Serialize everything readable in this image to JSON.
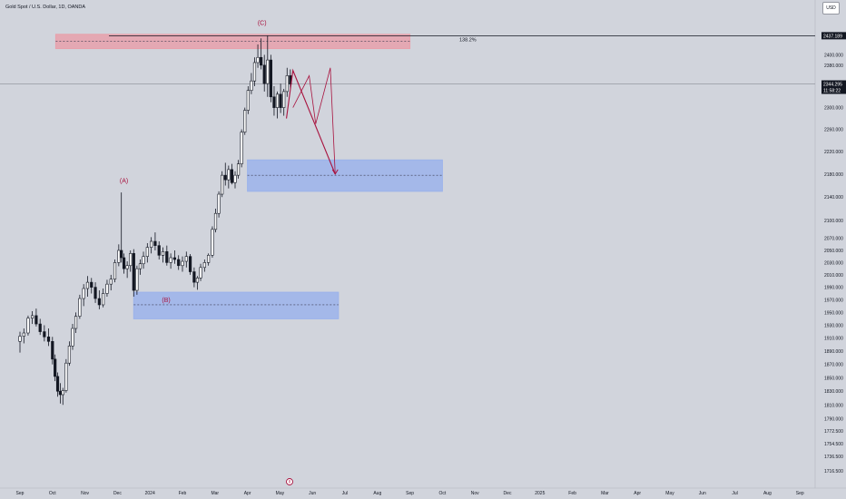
{
  "header": {
    "symbol_title": "Gold Spot / U.S. Dollar, 1D, OANDA",
    "currency_button": "USD"
  },
  "colors": {
    "background": "#d1d4dc",
    "candle": "#131722",
    "supply_zone": "#e8a0ab",
    "demand_zone": "#9cb3eb",
    "wave_label": "#a8123e",
    "projection": "#a8123e"
  },
  "chart_data": {
    "type": "candlestick",
    "y_scale": "log",
    "ylim": [
      1705,
      2445
    ],
    "x_tick_labels": [
      "Sep",
      "Oct",
      "Nov",
      "Dec",
      "2024",
      "Feb",
      "Mar",
      "Apr",
      "May",
      "Jun",
      "Jul",
      "Aug",
      "Sep",
      "Oct",
      "Nov",
      "Dec",
      "2025",
      "Feb",
      "Mar",
      "Apr",
      "May",
      "Jun",
      "Jul",
      "Aug",
      "Sep"
    ],
    "y_ticks": [
      2400,
      2380,
      2340,
      2300,
      2260,
      2220,
      2180,
      2140,
      2100,
      2070,
      2050,
      2030,
      2010,
      1990,
      1970,
      1950,
      1930,
      1910,
      1890,
      1870,
      1850,
      1830,
      1810,
      1790,
      1772.5,
      1754.5,
      1736.5,
      1716.5
    ],
    "y_tick_labels": [
      "2400.000",
      "2380.000",
      "2340.000",
      "2300.000",
      "2260.000",
      "2220.000",
      "2180.000",
      "2140.000",
      "2100.000",
      "2070.000",
      "2050.000",
      "2030.000",
      "2010.000",
      "1990.000",
      "1970.000",
      "1950.000",
      "1930.000",
      "1910.000",
      "1890.000",
      "1870.000",
      "1850.000",
      "1830.000",
      "1810.000",
      "1790.000",
      "1772.500",
      "1754.500",
      "1736.500",
      "1716.500"
    ],
    "price_levels": [
      {
        "value": 2437.189,
        "label": "2437.189",
        "fib_label": "138.2%"
      },
      {
        "value": 2344.295,
        "label": "2344.295",
        "countdown": "11:58:22"
      }
    ],
    "wave_labels": [
      {
        "text": "(A)",
        "month": 3.2,
        "value": 2165
      },
      {
        "text": "(B)",
        "month": 4.5,
        "value": 1966
      },
      {
        "text": "(C)",
        "month": 7.45,
        "value": 2458
      }
    ],
    "zones": [
      {
        "kind": "supply",
        "start_month": 1.1,
        "end_month": 12.0,
        "low": 2412,
        "high": 2440,
        "mid": 2426
      },
      {
        "kind": "demand",
        "start_month": 7.0,
        "end_month": 13.0,
        "low": 2150,
        "high": 2205,
        "mid": 2178
      },
      {
        "kind": "demand",
        "start_month": 3.5,
        "end_month": 9.8,
        "low": 1940,
        "high": 1982,
        "mid": 1962
      }
    ],
    "projection_paths": [
      [
        {
          "month": 8.2,
          "value": 2280
        },
        {
          "month": 8.4,
          "value": 2370
        },
        {
          "month": 9.7,
          "value": 2180
        }
      ],
      [
        {
          "month": 8.4,
          "value": 2300
        },
        {
          "month": 8.9,
          "value": 2360
        },
        {
          "month": 9.1,
          "value": 2270
        },
        {
          "month": 9.55,
          "value": 2375
        },
        {
          "month": 9.7,
          "value": 2180
        }
      ]
    ],
    "ohlc": [
      {
        "month": 0.0,
        "o": 1905,
        "h": 1920,
        "l": 1888,
        "c": 1913
      },
      {
        "month": 0.12,
        "o": 1913,
        "h": 1925,
        "l": 1902,
        "c": 1918
      },
      {
        "month": 0.25,
        "o": 1918,
        "h": 1945,
        "l": 1914,
        "c": 1941
      },
      {
        "month": 0.38,
        "o": 1941,
        "h": 1952,
        "l": 1932,
        "c": 1945
      },
      {
        "month": 0.5,
        "o": 1945,
        "h": 1956,
        "l": 1928,
        "c": 1932
      },
      {
        "month": 0.62,
        "o": 1932,
        "h": 1940,
        "l": 1915,
        "c": 1920
      },
      {
        "month": 0.75,
        "o": 1920,
        "h": 1930,
        "l": 1905,
        "c": 1912
      },
      {
        "month": 0.88,
        "o": 1912,
        "h": 1925,
        "l": 1898,
        "c": 1905
      },
      {
        "month": 1.0,
        "o": 1905,
        "h": 1912,
        "l": 1870,
        "c": 1878
      },
      {
        "month": 1.08,
        "o": 1878,
        "h": 1885,
        "l": 1845,
        "c": 1852
      },
      {
        "month": 1.16,
        "o": 1852,
        "h": 1858,
        "l": 1822,
        "c": 1830
      },
      {
        "month": 1.24,
        "o": 1830,
        "h": 1842,
        "l": 1812,
        "c": 1825
      },
      {
        "month": 1.32,
        "o": 1825,
        "h": 1835,
        "l": 1810,
        "c": 1831
      },
      {
        "month": 1.42,
        "o": 1831,
        "h": 1878,
        "l": 1828,
        "c": 1872
      },
      {
        "month": 1.52,
        "o": 1872,
        "h": 1905,
        "l": 1868,
        "c": 1898
      },
      {
        "month": 1.62,
        "o": 1898,
        "h": 1932,
        "l": 1892,
        "c": 1925
      },
      {
        "month": 1.72,
        "o": 1925,
        "h": 1950,
        "l": 1918,
        "c": 1944
      },
      {
        "month": 1.84,
        "o": 1944,
        "h": 1978,
        "l": 1940,
        "c": 1972
      },
      {
        "month": 1.96,
        "o": 1972,
        "h": 1995,
        "l": 1960,
        "c": 1988
      },
      {
        "month": 2.08,
        "o": 1988,
        "h": 2008,
        "l": 1975,
        "c": 1998
      },
      {
        "month": 2.2,
        "o": 1998,
        "h": 2005,
        "l": 1980,
        "c": 1990
      },
      {
        "month": 2.32,
        "o": 1990,
        "h": 1998,
        "l": 1965,
        "c": 1972
      },
      {
        "month": 2.44,
        "o": 1972,
        "h": 1985,
        "l": 1955,
        "c": 1962
      },
      {
        "month": 2.56,
        "o": 1962,
        "h": 1988,
        "l": 1958,
        "c": 1980
      },
      {
        "month": 2.68,
        "o": 1980,
        "h": 2002,
        "l": 1975,
        "c": 1995
      },
      {
        "month": 2.8,
        "o": 1995,
        "h": 2010,
        "l": 1985,
        "c": 2003
      },
      {
        "month": 2.92,
        "o": 2003,
        "h": 2035,
        "l": 1998,
        "c": 2030
      },
      {
        "month": 3.04,
        "o": 2030,
        "h": 2060,
        "l": 2024,
        "c": 2050
      },
      {
        "month": 3.12,
        "o": 2050,
        "h": 2148,
        "l": 2030,
        "c": 2038
      },
      {
        "month": 3.2,
        "o": 2038,
        "h": 2045,
        "l": 2012,
        "c": 2020
      },
      {
        "month": 3.3,
        "o": 2020,
        "h": 2032,
        "l": 2005,
        "c": 2025
      },
      {
        "month": 3.4,
        "o": 2025,
        "h": 2050,
        "l": 2015,
        "c": 2045
      },
      {
        "month": 3.5,
        "o": 2045,
        "h": 2052,
        "l": 1975,
        "c": 1985
      },
      {
        "month": 3.6,
        "o": 1985,
        "h": 2025,
        "l": 1978,
        "c": 2020
      },
      {
        "month": 3.7,
        "o": 2020,
        "h": 2035,
        "l": 2010,
        "c": 2028
      },
      {
        "month": 3.8,
        "o": 2028,
        "h": 2048,
        "l": 2020,
        "c": 2040
      },
      {
        "month": 3.92,
        "o": 2040,
        "h": 2062,
        "l": 2030,
        "c": 2055
      },
      {
        "month": 4.04,
        "o": 2055,
        "h": 2072,
        "l": 2045,
        "c": 2065
      },
      {
        "month": 4.16,
        "o": 2065,
        "h": 2080,
        "l": 2050,
        "c": 2058
      },
      {
        "month": 4.28,
        "o": 2058,
        "h": 2065,
        "l": 2035,
        "c": 2042
      },
      {
        "month": 4.4,
        "o": 2042,
        "h": 2055,
        "l": 2030,
        "c": 2048
      },
      {
        "month": 4.52,
        "o": 2048,
        "h": 2058,
        "l": 2025,
        "c": 2030
      },
      {
        "month": 4.64,
        "o": 2030,
        "h": 2045,
        "l": 2020,
        "c": 2038
      },
      {
        "month": 4.76,
        "o": 2038,
        "h": 2050,
        "l": 2028,
        "c": 2035
      },
      {
        "month": 4.88,
        "o": 2035,
        "h": 2042,
        "l": 2018,
        "c": 2025
      },
      {
        "month": 5.0,
        "o": 2025,
        "h": 2040,
        "l": 2015,
        "c": 2032
      },
      {
        "month": 5.12,
        "o": 2032,
        "h": 2048,
        "l": 2022,
        "c": 2040
      },
      {
        "month": 5.24,
        "o": 2040,
        "h": 2044,
        "l": 2010,
        "c": 2015
      },
      {
        "month": 5.36,
        "o": 2015,
        "h": 2022,
        "l": 1990,
        "c": 1998
      },
      {
        "month": 5.46,
        "o": 1998,
        "h": 2008,
        "l": 1986,
        "c": 2005
      },
      {
        "month": 5.56,
        "o": 2005,
        "h": 2028,
        "l": 2000,
        "c": 2022
      },
      {
        "month": 5.68,
        "o": 2022,
        "h": 2035,
        "l": 2015,
        "c": 2030
      },
      {
        "month": 5.8,
        "o": 2030,
        "h": 2045,
        "l": 2025,
        "c": 2042
      },
      {
        "month": 5.92,
        "o": 2042,
        "h": 2090,
        "l": 2038,
        "c": 2085
      },
      {
        "month": 6.02,
        "o": 2085,
        "h": 2120,
        "l": 2080,
        "c": 2112
      },
      {
        "month": 6.12,
        "o": 2112,
        "h": 2150,
        "l": 2105,
        "c": 2145
      },
      {
        "month": 6.22,
        "o": 2145,
        "h": 2185,
        "l": 2140,
        "c": 2178
      },
      {
        "month": 6.32,
        "o": 2178,
        "h": 2200,
        "l": 2160,
        "c": 2170
      },
      {
        "month": 6.42,
        "o": 2170,
        "h": 2195,
        "l": 2155,
        "c": 2188
      },
      {
        "month": 6.52,
        "o": 2188,
        "h": 2198,
        "l": 2162,
        "c": 2165
      },
      {
        "month": 6.62,
        "o": 2165,
        "h": 2185,
        "l": 2155,
        "c": 2178
      },
      {
        "month": 6.72,
        "o": 2178,
        "h": 2205,
        "l": 2172,
        "c": 2198
      },
      {
        "month": 6.82,
        "o": 2198,
        "h": 2260,
        "l": 2192,
        "c": 2255
      },
      {
        "month": 6.92,
        "o": 2255,
        "h": 2300,
        "l": 2250,
        "c": 2295
      },
      {
        "month": 7.02,
        "o": 2295,
        "h": 2340,
        "l": 2288,
        "c": 2332
      },
      {
        "month": 7.12,
        "o": 2332,
        "h": 2365,
        "l": 2325,
        "c": 2350
      },
      {
        "month": 7.22,
        "o": 2350,
        "h": 2395,
        "l": 2340,
        "c": 2385
      },
      {
        "month": 7.32,
        "o": 2385,
        "h": 2420,
        "l": 2375,
        "c": 2395
      },
      {
        "month": 7.42,
        "o": 2395,
        "h": 2432,
        "l": 2372,
        "c": 2380
      },
      {
        "month": 7.52,
        "o": 2380,
        "h": 2400,
        "l": 2330,
        "c": 2345
      },
      {
        "month": 7.62,
        "o": 2345,
        "h": 2437,
        "l": 2320,
        "c": 2390
      },
      {
        "month": 7.72,
        "o": 2390,
        "h": 2400,
        "l": 2310,
        "c": 2320
      },
      {
        "month": 7.82,
        "o": 2320,
        "h": 2340,
        "l": 2285,
        "c": 2300
      },
      {
        "month": 7.92,
        "o": 2300,
        "h": 2330,
        "l": 2280,
        "c": 2325
      },
      {
        "month": 8.02,
        "o": 2325,
        "h": 2345,
        "l": 2290,
        "c": 2300
      },
      {
        "month": 8.12,
        "o": 2300,
        "h": 2335,
        "l": 2285,
        "c": 2330
      },
      {
        "month": 8.22,
        "o": 2330,
        "h": 2375,
        "l": 2320,
        "c": 2360
      },
      {
        "month": 8.32,
        "o": 2360,
        "h": 2372,
        "l": 2335,
        "c": 2344
      }
    ]
  }
}
